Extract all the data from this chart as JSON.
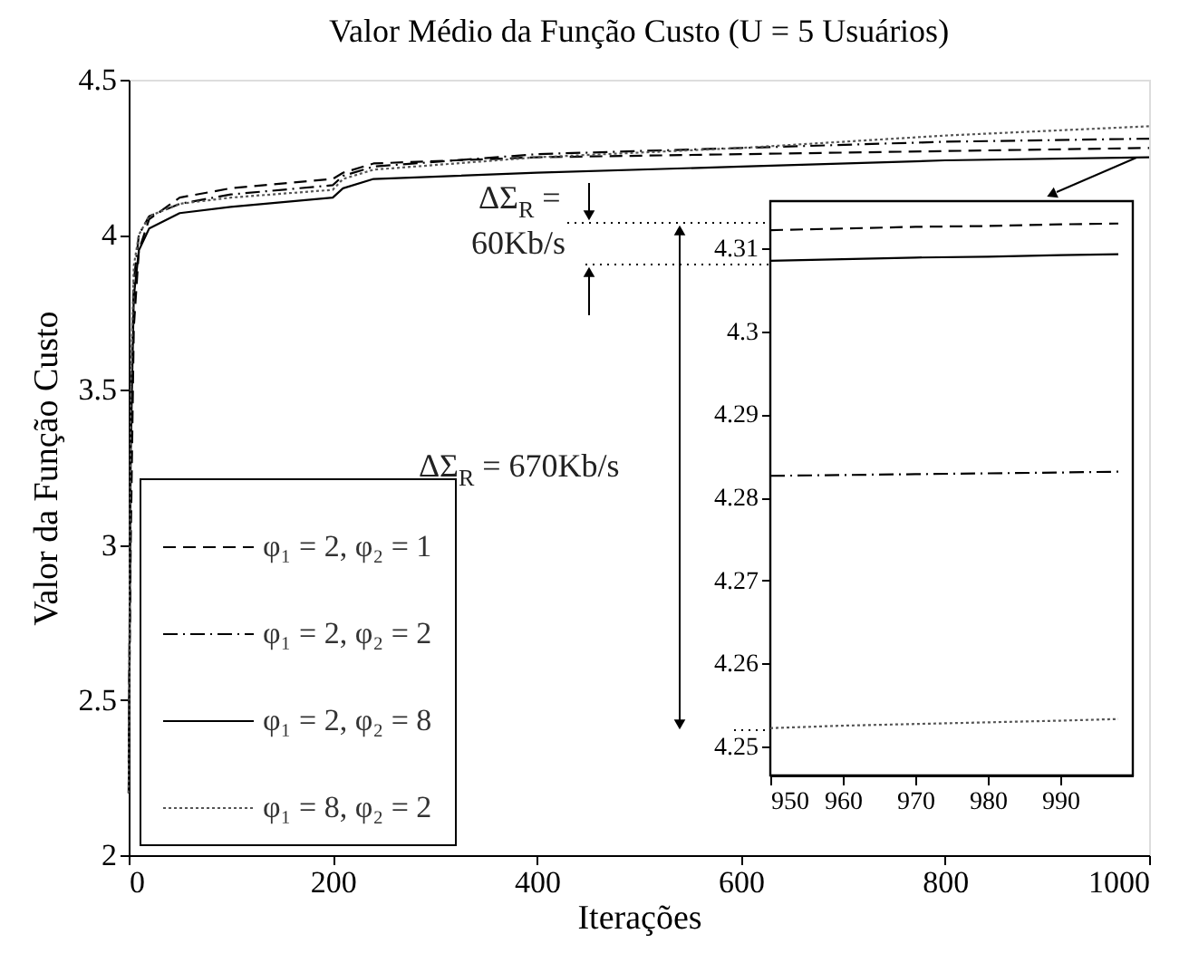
{
  "chart_data": [
    {
      "type": "line",
      "title": "Valor Médio da Função Custo (U = 5 Usuários)",
      "xlabel": "Iterações",
      "ylabel": "Valor da Função Custo",
      "x": [
        0,
        2,
        5,
        10,
        20,
        50,
        100,
        200,
        210,
        240,
        400,
        600,
        800,
        1000
      ],
      "series": [
        {
          "name": "φ₁ = 2, φ₂ = 1",
          "color": "#000000",
          "line_style": "dashed",
          "values": [
            2.3,
            3.0,
            3.7,
            3.95,
            4.05,
            4.12,
            4.15,
            4.18,
            4.2,
            4.23,
            4.25,
            4.26,
            4.27,
            4.28
          ]
        },
        {
          "name": "φ₁ = 2, φ₂ = 2",
          "color": "#000000",
          "line_style": "dashdot",
          "values": [
            2.2,
            3.4,
            3.85,
            4.0,
            4.06,
            4.1,
            4.13,
            4.16,
            4.19,
            4.22,
            4.26,
            4.28,
            4.3,
            4.31
          ]
        },
        {
          "name": "φ₁ = 2, φ₂ = 8",
          "color": "#000000",
          "line_style": "solid",
          "values": [
            2.2,
            3.3,
            3.8,
            3.95,
            4.02,
            4.07,
            4.09,
            4.12,
            4.15,
            4.18,
            4.2,
            4.22,
            4.24,
            4.25
          ]
        },
        {
          "name": "φ₁ = 8, φ₂ = 2",
          "color": "#555555",
          "line_style": "dotted",
          "values": [
            2.2,
            3.5,
            3.9,
            4.0,
            4.06,
            4.1,
            4.12,
            4.145,
            4.18,
            4.21,
            4.25,
            4.28,
            4.32,
            4.35
          ]
        }
      ],
      "xlim": [
        0,
        1000
      ],
      "xticks": [
        0,
        200,
        400,
        600,
        800,
        1000
      ],
      "ylim": [
        2,
        4.5
      ],
      "yticks": [
        2,
        2.5,
        3,
        3.5,
        4,
        4.5
      ],
      "grid": false,
      "legend": "bottom left",
      "annotations": [
        "ΔΣ$_{R}$ =\n60Kb/s",
        "ΔΣ$_{R}$ = 670Kb/s"
      ]
    },
    {
      "type": "line",
      "x": [
        950,
        960,
        970,
        980,
        990,
        998
      ],
      "series": [
        {
          "color": "#000000",
          "line_style": "dashed",
          "values": [
            4.3122,
            4.3124,
            4.3126,
            4.3127,
            4.3129,
            4.313
          ]
        },
        {
          "color": "#000000",
          "line_style": "dashdot",
          "values": [
            4.2826,
            4.2827,
            4.2828,
            4.2829,
            4.283,
            4.2831
          ]
        },
        {
          "color": "#000000",
          "line_style": "solid",
          "values": [
            4.3085,
            4.3087,
            4.3089,
            4.309,
            4.3092,
            4.3093
          ]
        },
        {
          "color": "#555555",
          "line_style": "dotted",
          "values": [
            4.2522,
            4.2525,
            4.2527,
            4.2529,
            4.2531,
            4.2533
          ]
        }
      ],
      "xlim": [
        950,
        1000
      ],
      "xticks": [
        950,
        960,
        970,
        980,
        990
      ],
      "ylim": [
        4.2465,
        4.3157
      ],
      "yticks": [
        4.25,
        4.26,
        4.27,
        4.28,
        4.29,
        4.3,
        4.31
      ],
      "grid": false,
      "legend": false
    }
  ]
}
